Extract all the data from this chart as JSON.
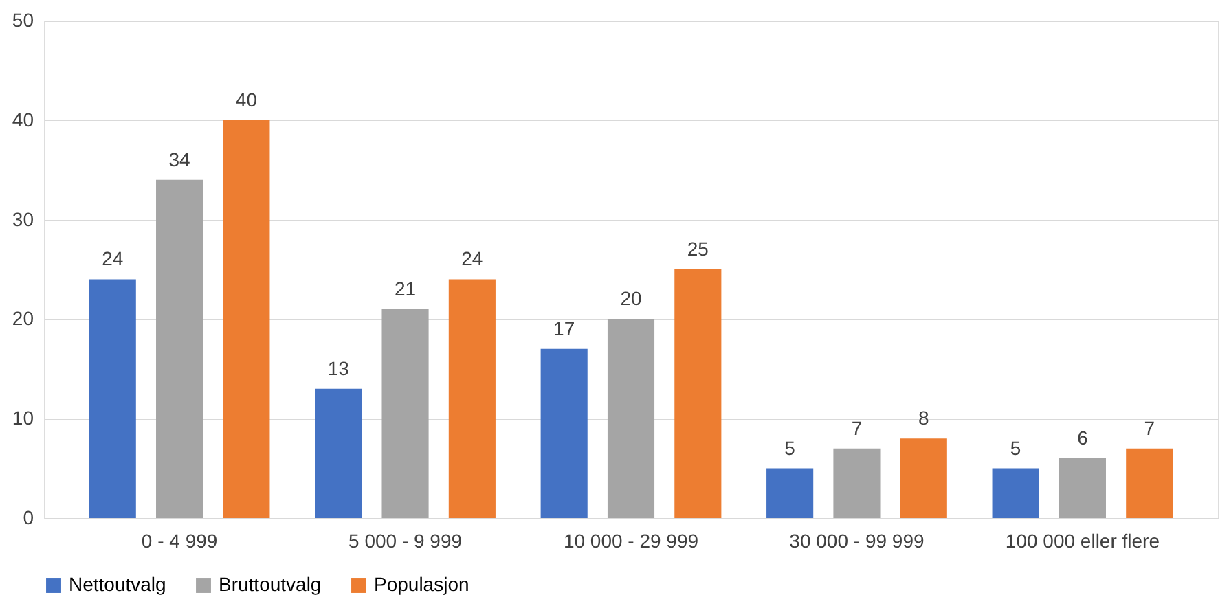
{
  "chart_data": {
    "type": "bar",
    "categories": [
      "0 - 4 999",
      "5 000 - 9 999",
      "10 000 - 29 999",
      "30 000 - 99 999",
      "100 000 eller flere"
    ],
    "series": [
      {
        "name": "Nettoutvalg",
        "color": "#4472c4",
        "values": [
          24,
          13,
          17,
          5,
          5
        ]
      },
      {
        "name": "Bruttoutvalg",
        "color": "#a5a5a5",
        "values": [
          34,
          21,
          20,
          7,
          6
        ]
      },
      {
        "name": "Populasjon",
        "color": "#ed7d31",
        "values": [
          40,
          24,
          25,
          8,
          7
        ]
      }
    ],
    "ylim": [
      0,
      50
    ],
    "yticks": [
      0,
      10,
      20,
      30,
      40,
      50
    ],
    "grid": "y",
    "legend": "bottom",
    "data_labels": true
  }
}
